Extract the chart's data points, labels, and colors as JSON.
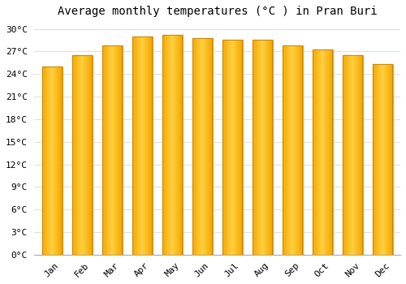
{
  "title": "Average monthly temperatures (°C ) in Pran Buri",
  "months": [
    "Jan",
    "Feb",
    "Mar",
    "Apr",
    "May",
    "Jun",
    "Jul",
    "Aug",
    "Sep",
    "Oct",
    "Nov",
    "Dec"
  ],
  "values": [
    25.0,
    26.5,
    27.8,
    29.0,
    29.2,
    28.8,
    28.5,
    28.5,
    27.8,
    27.3,
    26.5,
    25.3
  ],
  "bar_color_dark": "#F5A800",
  "bar_color_light": "#FFD040",
  "bar_edge_color": "#C8880A",
  "background_color": "#FFFFFF",
  "grid_color": "#E0E0E0",
  "ylim": [
    0,
    31
  ],
  "ytick_step": 3,
  "title_fontsize": 10,
  "tick_fontsize": 8,
  "font_family": "monospace"
}
